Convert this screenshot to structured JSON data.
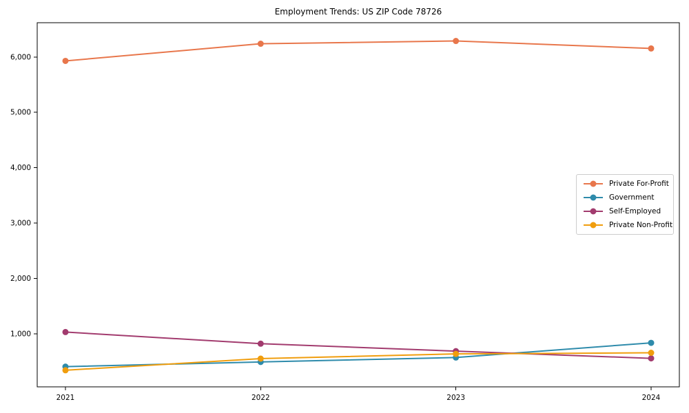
{
  "chart_data": {
    "type": "line",
    "title": "Employment Trends: US ZIP Code 78726",
    "xlabel": "",
    "ylabel": "",
    "x_categories": [
      "2021",
      "2022",
      "2023",
      "2024"
    ],
    "series": [
      {
        "name": "Private For-Profit",
        "color": "#E8764B",
        "values": [
          5930,
          6240,
          6290,
          6155
        ]
      },
      {
        "name": "Government",
        "color": "#2E8BAB",
        "values": [
          405,
          490,
          570,
          835
        ]
      },
      {
        "name": "Self-Employed",
        "color": "#A23B6E",
        "values": [
          1030,
          820,
          685,
          555
        ]
      },
      {
        "name": "Private Non-Profit",
        "color": "#F09D0D",
        "values": [
          340,
          550,
          635,
          655
        ]
      }
    ],
    "yticks": [
      1000,
      2000,
      3000,
      4000,
      5000,
      6000
    ],
    "ytick_labels": [
      "1,000",
      "2,000",
      "3,000",
      "4,000",
      "5,000",
      "6,000"
    ],
    "ylim": [
      40,
      6620
    ],
    "grid": false,
    "legend_position": "center-right",
    "marker": "circle"
  },
  "style_colors": {
    "axis": "#000000",
    "tick_text": "#000000",
    "legend_border": "#cccccc",
    "background": "#ffffff"
  }
}
